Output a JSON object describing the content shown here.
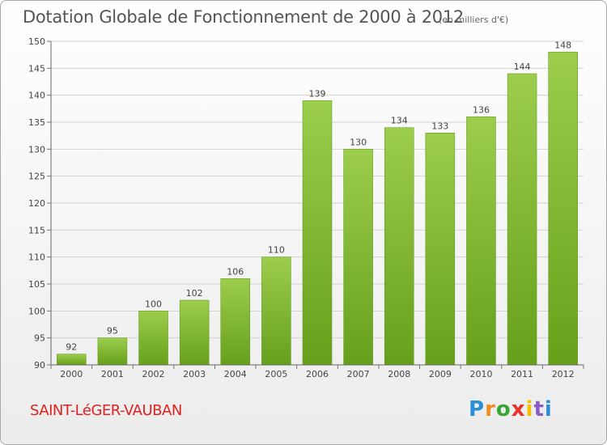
{
  "header": {
    "title": "Dotation Globale de Fonctionnement de 2000 à 2012",
    "subtitle": "(en milliers d'€)"
  },
  "footer": {
    "commune": "SAINT-LéGER-VAUBAN",
    "logo_text": "Proxiti",
    "logo_colors": [
      "#2a8fd6",
      "#f08a1c",
      "#3aa535",
      "#e8322b",
      "#f5c000",
      "#8b5cc8",
      "#2a8fd6"
    ]
  },
  "chart_data": {
    "type": "bar",
    "categories": [
      "2000",
      "2001",
      "2002",
      "2003",
      "2004",
      "2005",
      "2006",
      "2007",
      "2008",
      "2009",
      "2010",
      "2011",
      "2012"
    ],
    "values": [
      92,
      95,
      100,
      102,
      106,
      110,
      139,
      130,
      134,
      133,
      136,
      144,
      148
    ],
    "data_labels": [
      "92",
      "95",
      "100",
      "102",
      "106",
      "110",
      "139",
      "130",
      "134",
      "133",
      "136",
      "144",
      "148"
    ],
    "ylim": [
      90,
      150
    ],
    "yticks": [
      90,
      95,
      100,
      105,
      110,
      115,
      120,
      125,
      130,
      135,
      140,
      145,
      150
    ],
    "grid": true,
    "bar_color": "#7dbb2d"
  }
}
